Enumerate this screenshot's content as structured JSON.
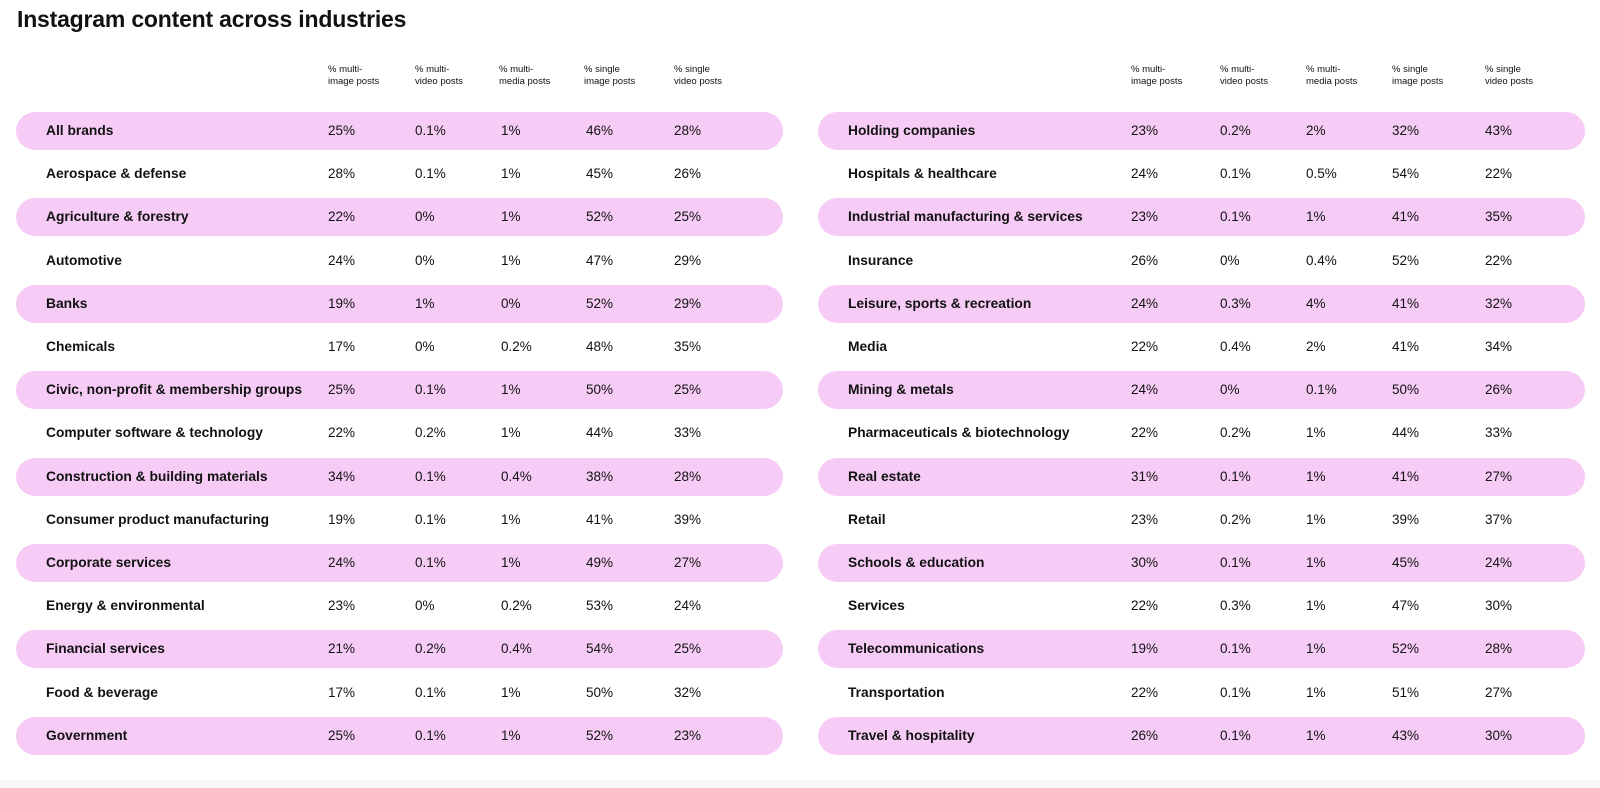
{
  "title": "Instagram content across industries",
  "colors": {
    "row_highlight": "#f6ccf6",
    "text": "#111111",
    "background": "#ffffff"
  },
  "chart_data": {
    "type": "table",
    "title": "Instagram content across industries",
    "columns": [
      "% multi-image posts",
      "% multi-video posts",
      "% multi-media posts",
      "% single image posts",
      "% single video posts"
    ],
    "column_lines": [
      [
        "% multi-",
        "image posts"
      ],
      [
        "% multi-",
        "video posts"
      ],
      [
        "% multi-",
        "media posts"
      ],
      [
        "% single",
        "image posts"
      ],
      [
        "% single",
        "video posts"
      ]
    ],
    "tables": [
      {
        "rows": [
          {
            "label": "All brands",
            "values": [
              "25%",
              "0.1%",
              "1%",
              "46%",
              "28%"
            ]
          },
          {
            "label": "Aerospace & defense",
            "values": [
              "28%",
              "0.1%",
              "1%",
              "45%",
              "26%"
            ]
          },
          {
            "label": "Agriculture & forestry",
            "values": [
              "22%",
              "0%",
              "1%",
              "52%",
              "25%"
            ]
          },
          {
            "label": "Automotive",
            "values": [
              "24%",
              "0%",
              "1%",
              "47%",
              "29%"
            ]
          },
          {
            "label": "Banks",
            "values": [
              "19%",
              "1%",
              "0%",
              "52%",
              "29%"
            ]
          },
          {
            "label": "Chemicals",
            "values": [
              "17%",
              "0%",
              "0.2%",
              "48%",
              "35%"
            ]
          },
          {
            "label": "Civic, non-profit & membership groups",
            "values": [
              "25%",
              "0.1%",
              "1%",
              "50%",
              "25%"
            ]
          },
          {
            "label": "Computer software & technology",
            "values": [
              "22%",
              "0.2%",
              "1%",
              "44%",
              "33%"
            ]
          },
          {
            "label": "Construction & building materials",
            "values": [
              "34%",
              "0.1%",
              "0.4%",
              "38%",
              "28%"
            ]
          },
          {
            "label": "Consumer product manufacturing",
            "values": [
              "19%",
              "0.1%",
              "1%",
              "41%",
              "39%"
            ]
          },
          {
            "label": "Corporate services",
            "values": [
              "24%",
              "0.1%",
              "1%",
              "49%",
              "27%"
            ]
          },
          {
            "label": "Energy & environmental",
            "values": [
              "23%",
              "0%",
              "0.2%",
              "53%",
              "24%"
            ]
          },
          {
            "label": "Financial services",
            "values": [
              "21%",
              "0.2%",
              "0.4%",
              "54%",
              "25%"
            ]
          },
          {
            "label": "Food & beverage",
            "values": [
              "17%",
              "0.1%",
              "1%",
              "50%",
              "32%"
            ]
          },
          {
            "label": "Government",
            "values": [
              "25%",
              "0.1%",
              "1%",
              "52%",
              "23%"
            ]
          }
        ]
      },
      {
        "rows": [
          {
            "label": "Holding companies",
            "values": [
              "23%",
              "0.2%",
              "2%",
              "32%",
              "43%"
            ]
          },
          {
            "label": "Hospitals & healthcare",
            "values": [
              "24%",
              "0.1%",
              "0.5%",
              "54%",
              "22%"
            ]
          },
          {
            "label": "Industrial manufacturing & services",
            "values": [
              "23%",
              "0.1%",
              "1%",
              "41%",
              "35%"
            ]
          },
          {
            "label": "Insurance",
            "values": [
              "26%",
              "0%",
              "0.4%",
              "52%",
              "22%"
            ]
          },
          {
            "label": "Leisure, sports & recreation",
            "values": [
              "24%",
              "0.3%",
              "4%",
              "41%",
              "32%"
            ]
          },
          {
            "label": "Media",
            "values": [
              "22%",
              "0.4%",
              "2%",
              "41%",
              "34%"
            ]
          },
          {
            "label": "Mining & metals",
            "values": [
              "24%",
              "0%",
              "0.1%",
              "50%",
              "26%"
            ]
          },
          {
            "label": "Pharmaceuticals & biotechnology",
            "values": [
              "22%",
              "0.2%",
              "1%",
              "44%",
              "33%"
            ]
          },
          {
            "label": "Real estate",
            "values": [
              "31%",
              "0.1%",
              "1%",
              "41%",
              "27%"
            ]
          },
          {
            "label": "Retail",
            "values": [
              "23%",
              "0.2%",
              "1%",
              "39%",
              "37%"
            ]
          },
          {
            "label": "Schools & education",
            "values": [
              "30%",
              "0.1%",
              "1%",
              "45%",
              "24%"
            ]
          },
          {
            "label": "Services",
            "values": [
              "22%",
              "0.3%",
              "1%",
              "47%",
              "30%"
            ]
          },
          {
            "label": "Telecommunications",
            "values": [
              "19%",
              "0.1%",
              "1%",
              "52%",
              "28%"
            ]
          },
          {
            "label": "Transportation",
            "values": [
              "22%",
              "0.1%",
              "1%",
              "51%",
              "27%"
            ]
          },
          {
            "label": "Travel & hospitality",
            "values": [
              "26%",
              "0.1%",
              "1%",
              "43%",
              "30%"
            ]
          }
        ]
      }
    ]
  }
}
